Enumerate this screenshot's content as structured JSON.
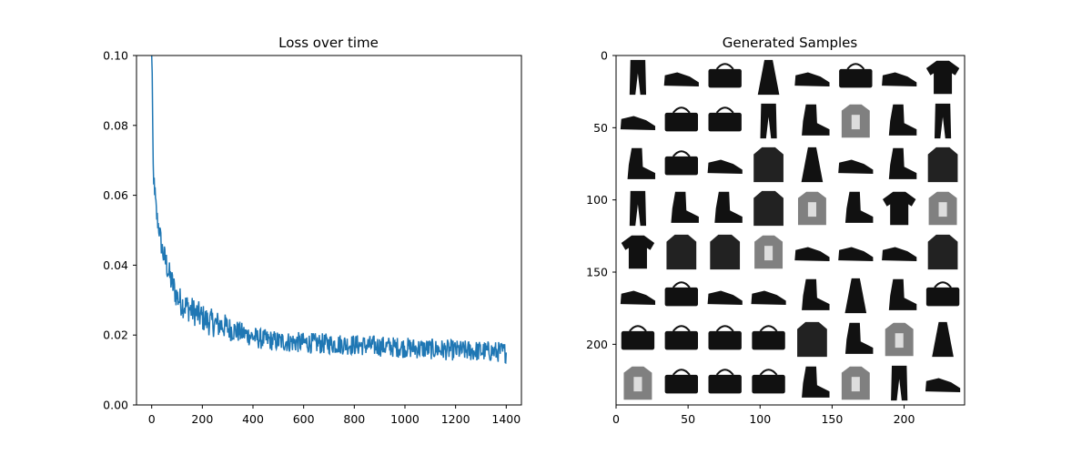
{
  "figure": {
    "background": "#ffffff"
  },
  "chart_data": [
    {
      "type": "line",
      "title": "Loss over time",
      "xlabel": "",
      "ylabel": "",
      "xlim": [
        -60,
        1460
      ],
      "ylim": [
        0.0,
        0.1
      ],
      "xticks": [
        0,
        200,
        400,
        600,
        800,
        1000,
        1200,
        1400
      ],
      "xtick_labels": [
        "0",
        "200",
        "400",
        "600",
        "800",
        "1000",
        "1200",
        "1400"
      ],
      "yticks": [
        0.0,
        0.02,
        0.04,
        0.06,
        0.08,
        0.1
      ],
      "ytick_labels": [
        "0.00",
        "0.02",
        "0.04",
        "0.06",
        "0.08",
        "0.10"
      ],
      "grid": false,
      "legend": "none",
      "series": [
        {
          "color": "#1f77b4",
          "x": [
            0,
            2,
            4,
            6,
            8,
            10,
            15,
            20,
            30,
            40,
            50,
            60,
            70,
            80,
            90,
            100,
            120,
            140,
            160,
            180,
            200,
            220,
            240,
            260,
            280,
            300,
            320,
            340,
            360,
            380,
            400,
            420,
            440,
            460,
            480,
            500,
            550,
            600,
            650,
            700,
            750,
            800,
            850,
            900,
            950,
            1000,
            1050,
            1100,
            1150,
            1200,
            1250,
            1300,
            1350,
            1400
          ],
          "y": [
            0.1,
            0.095,
            0.08,
            0.066,
            0.062,
            0.064,
            0.058,
            0.054,
            0.05,
            0.045,
            0.042,
            0.04,
            0.037,
            0.035,
            0.033,
            0.031,
            0.029,
            0.028,
            0.027,
            0.026,
            0.025,
            0.024,
            0.0235,
            0.023,
            0.0228,
            0.022,
            0.0215,
            0.021,
            0.0205,
            0.02,
            0.0195,
            0.019,
            0.0188,
            0.0186,
            0.0184,
            0.0182,
            0.018,
            0.0178,
            0.0176,
            0.0175,
            0.0174,
            0.0172,
            0.017,
            0.0168,
            0.0166,
            0.0164,
            0.0162,
            0.016,
            0.0158,
            0.0156,
            0.0155,
            0.0154,
            0.0153,
            0.015
          ],
          "noise": [
            0,
            0,
            0.002,
            0.003,
            0.003,
            0.003,
            0.003,
            0.003,
            0.003,
            0.0035,
            0.004,
            0.004,
            0.004,
            0.004,
            0.004,
            0.004,
            0.004,
            0.004,
            0.004,
            0.004,
            0.004,
            0.004,
            0.004,
            0.004,
            0.0038,
            0.0036,
            0.0034,
            0.0032,
            0.003,
            0.003,
            0.003,
            0.003,
            0.003,
            0.003,
            0.003,
            0.003,
            0.003,
            0.003,
            0.003,
            0.003,
            0.003,
            0.003,
            0.003,
            0.003,
            0.003,
            0.003,
            0.003,
            0.003,
            0.003,
            0.003,
            0.003,
            0.003,
            0.003,
            0.003
          ]
        }
      ]
    },
    {
      "type": "heatmap",
      "title": "Generated Samples",
      "xlabel": "",
      "ylabel": "",
      "xlim": [
        0,
        242
      ],
      "ylim": [
        242,
        0
      ],
      "xticks": [
        0,
        50,
        100,
        150,
        200
      ],
      "xtick_labels": [
        "0",
        "50",
        "100",
        "150",
        "200"
      ],
      "yticks": [
        0,
        50,
        100,
        150,
        200
      ],
      "ytick_labels": [
        "0",
        "50",
        "100",
        "150",
        "200"
      ],
      "grid_rows": 8,
      "grid_cols": 8,
      "colormap": "gray_r",
      "samples": [
        [
          "pants",
          "shoe",
          "bag",
          "dress",
          "shoe",
          "bag",
          "shoe",
          "tshirt"
        ],
        [
          "shoe",
          "bag",
          "bag",
          "pants",
          "boot",
          "shirt",
          "boot",
          "pants"
        ],
        [
          "boot",
          "bag",
          "shoe",
          "coat",
          "dress",
          "shoe",
          "boot",
          "coat"
        ],
        [
          "pants",
          "boot",
          "boot",
          "coat",
          "shirt",
          "boot",
          "tshirt",
          "shirt"
        ],
        [
          "tshirt",
          "coat",
          "coat",
          "shirt",
          "shoe",
          "shoe",
          "shoe",
          "coat"
        ],
        [
          "shoe",
          "bag",
          "shoe",
          "shoe",
          "boot",
          "dress",
          "boot",
          "bag"
        ],
        [
          "bag",
          "bag",
          "bag",
          "bag",
          "coat",
          "boot",
          "shirt",
          "dress"
        ],
        [
          "shirt",
          "bag",
          "bag",
          "bag",
          "boot",
          "shirt",
          "pants",
          "shoe"
        ]
      ]
    }
  ]
}
